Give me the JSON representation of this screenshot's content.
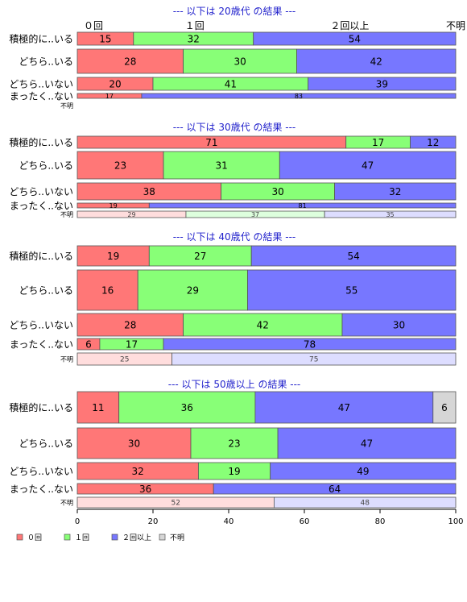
{
  "chart_data": {
    "type": "bar",
    "orientation": "horizontal",
    "stacked": "percent",
    "xlim": [
      0,
      100
    ],
    "xticks": [
      0,
      20,
      40,
      60,
      80,
      100
    ],
    "top_labels": [
      "０回",
      "１回",
      "２回以上",
      "不明"
    ],
    "legend": {
      "placement": "bottom-left",
      "items": [
        {
          "label": "０回",
          "color": "#ff7777"
        },
        {
          "label": "１回",
          "color": "#88ff77"
        },
        {
          "label": "２回以上",
          "color": "#7777ff"
        },
        {
          "label": "不明",
          "color": "#d6d6d6"
        }
      ]
    },
    "panels": [
      {
        "title": "--- 以下は 20歳代 の結果 ---",
        "rows": [
          {
            "label": "積極的に..いる",
            "values": [
              15,
              32,
              54
            ]
          },
          {
            "label": "どちら..いる",
            "values": [
              28,
              30,
              42
            ]
          },
          {
            "label": "どちら..いない",
            "values": [
              20,
              41,
              39
            ]
          },
          {
            "label": "まったく..ない",
            "values": [
              17,
              83
            ]
          },
          {
            "label": "不明",
            "values": []
          }
        ]
      },
      {
        "title": "--- 以下は 30歳代 の結果 ---",
        "rows": [
          {
            "label": "積極的に..いる",
            "values": [
              71,
              17,
              12
            ]
          },
          {
            "label": "どちら..いる",
            "values": [
              23,
              31,
              47
            ]
          },
          {
            "label": "どちら..いない",
            "values": [
              38,
              30,
              32
            ]
          },
          {
            "label": "まったく..ない",
            "values": [
              19,
              81
            ]
          },
          {
            "label": "不明",
            "values": [
              29,
              37,
              35
            ]
          }
        ]
      },
      {
        "title": "--- 以下は 40歳代 の結果 ---",
        "rows": [
          {
            "label": "積極的に..いる",
            "values": [
              19,
              27,
              54
            ]
          },
          {
            "label": "どちら..いる",
            "values": [
              16,
              29,
              55
            ]
          },
          {
            "label": "どちら..いない",
            "values": [
              28,
              42,
              30
            ]
          },
          {
            "label": "まったく..ない",
            "values": [
              6,
              17,
              78
            ]
          },
          {
            "label": "不明",
            "values": [
              25,
              75
            ]
          }
        ]
      },
      {
        "title": "--- 以下は 50歳以上 の結果 ---",
        "rows": [
          {
            "label": "積極的に..いる",
            "values": [
              11,
              36,
              47,
              6
            ]
          },
          {
            "label": "どちら..いる",
            "values": [
              30,
              23,
              47
            ]
          },
          {
            "label": "どちら..いない",
            "values": [
              32,
              19,
              49
            ]
          },
          {
            "label": "まったく..ない",
            "values": [
              36,
              64
            ]
          },
          {
            "label": "不明",
            "values": [
              52,
              48
            ]
          }
        ]
      }
    ]
  }
}
